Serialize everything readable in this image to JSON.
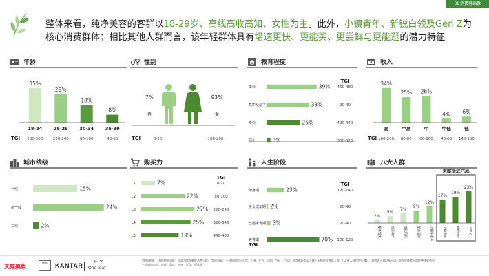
{
  "page_tab": "01 消费者画像",
  "headline": {
    "part1": "整体来看，纯净美容的客群以",
    "hl1": "18-29岁、高线高收高知、女性为主",
    "part2": "。此外，",
    "hl2": "小镇青年、新锐白领及Gen Z",
    "part3": "为核心消费群体；相比其他人群而言，该年轻群体具有",
    "hl3": "增速更快、更能买、更尝鲜与更能逛",
    "part4": "的潜力特征"
  },
  "colors": {
    "dark": "#4b8a2e",
    "mid": "#9ccf86",
    "light": "#cfe7c2",
    "accent": "#5b9a3c",
    "icon": "#555555"
  },
  "tgi_label": "TGI",
  "chart_data": [
    {
      "type": "bar",
      "id": "age",
      "title": "年龄",
      "categories": [
        "18-24",
        "25-29",
        "30-34",
        "35-39"
      ],
      "values": [
        35,
        29,
        18,
        8
      ],
      "value_labels": [
        "35%",
        "29%",
        "18%",
        "8%"
      ],
      "tgi": [
        "280-300",
        "220-240",
        "80-100",
        "40-60"
      ],
      "ylim": [
        0,
        45
      ]
    },
    {
      "type": "bar",
      "id": "gender",
      "title": "性别",
      "categories": [
        "男",
        "女"
      ],
      "values": [
        7,
        93
      ],
      "value_labels": [
        "7%",
        "93%"
      ],
      "tgi": [
        "0-20",
        "100-200"
      ]
    },
    {
      "type": "bar",
      "id": "education",
      "title": "教育程度",
      "orientation": "horizontal",
      "categories": [
        "本科",
        "高中及以下",
        "专科",
        "硕士"
      ],
      "values": [
        39,
        33,
        26,
        3
      ],
      "value_labels": [
        "39%",
        "33%",
        "26%",
        "3%"
      ],
      "tgi_header": "TGI",
      "tgi": [
        "460-480",
        "20-40",
        "420-440",
        "300-320"
      ],
      "xlim": [
        0,
        45
      ]
    },
    {
      "type": "bar",
      "id": "income",
      "title": "收入",
      "categories": [
        "高",
        "中高",
        "中",
        "中低",
        "低"
      ],
      "values": [
        34,
        25,
        26,
        4,
        6
      ],
      "value_labels": [
        "34%",
        "25%",
        "26%",
        "4%",
        "6%"
      ],
      "tgi": [
        "160-200",
        "60-80",
        "80-100",
        "40-60",
        "140-160"
      ],
      "ylim": [
        0,
        42
      ]
    },
    {
      "type": "bar",
      "id": "city",
      "title": "城市线级",
      "orientation": "horizontal",
      "categories": [
        "一线",
        "新一线",
        "二线"
      ],
      "values": [
        15,
        24,
        2
      ],
      "value_labels": [
        "15%",
        "24%",
        "2%"
      ],
      "xlim": [
        0,
        28
      ]
    },
    {
      "type": "bar",
      "id": "purchase",
      "title": "购买力",
      "orientation": "horizontal",
      "categories": [
        "L1",
        "L2",
        "L3",
        "L4",
        "L5"
      ],
      "values": [
        7,
        22,
        27,
        25,
        19
      ],
      "value_labels": [
        "7%",
        "22%",
        "27%",
        "25%",
        "19%"
      ],
      "tgi_header": "TGI",
      "tgi": [
        "0-20",
        "80-100",
        "220-240",
        "320-340",
        "440-460"
      ],
      "xlim": [
        0,
        30
      ]
    },
    {
      "type": "bar",
      "id": "lifestage",
      "title": "人生阶段",
      "orientation": "horizontal",
      "categories": [
        "单身期",
        "子女成年期",
        "已婚未育期",
        "养育期"
      ],
      "values": [
        23,
        2,
        5,
        70
      ],
      "value_labels": [
        "23%",
        "2%",
        "5%",
        "70%"
      ],
      "tgi_header": "TGI",
      "tgi": [
        "120-140",
        "20-40",
        "20-40",
        "100-120"
      ],
      "xlim": [
        0,
        75
      ]
    },
    {
      "type": "bar",
      "id": "eight_groups",
      "title": "八大人群",
      "annotation": "贡献接近六成",
      "categories": [
        "都市银发",
        "资深中产",
        "精致妈妈",
        "都市蓝领",
        "小镇中老年",
        "小镇青年",
        "新锐白领",
        "Gen Z"
      ],
      "values": [
        2,
        5,
        7,
        9,
        12,
        17,
        19,
        23
      ],
      "value_labels": [
        "2%",
        "5%",
        "7%",
        "9%",
        "12%",
        "17%",
        "19%",
        "23%"
      ],
      "ylim": [
        0,
        26
      ]
    }
  ],
  "footer": {
    "logo_tmall": "天猫美妆",
    "logo_tmic": "TMIC",
    "logo_kantar": "KANTAR",
    "logo_oneleaf_cn": "一 叶 子",
    "logo_oneleaf_en": "One leaf",
    "note1": "*数据来源：TMIC数据洞察；样本为纯净美容消费人群；*城市线级：一线城市包括北京、上海、广州、深圳；*新一线城市包括：成都、重庆、杭州、武汉、西安等",
    "note2": "*TGI：纯净美容购买人群 / 天猫美妆整体人群；TGI指人群的特征偏好，指数大于100表示该人群在此维度上相较整体更突出"
  }
}
